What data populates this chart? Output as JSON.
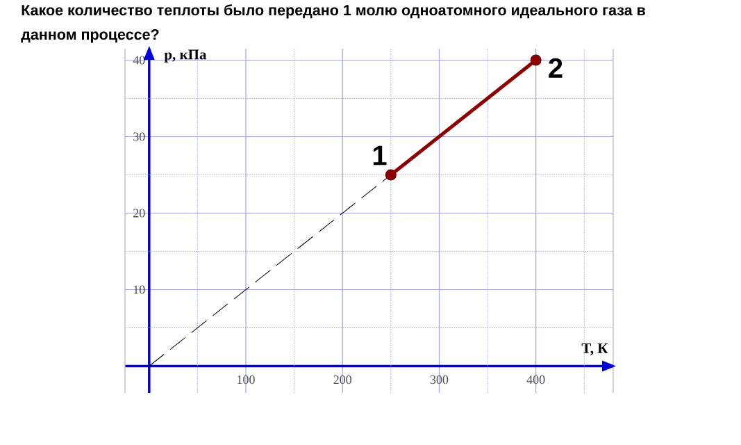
{
  "chart_data": {
    "type": "line",
    "title": "Какое количество теплоты было передано 1 молю одноатомного идеального газа в данном процессе?",
    "xlabel": "T, К",
    "ylabel": "p, кПа",
    "xlim": [
      -25,
      480
    ],
    "ylim": [
      -3.5,
      41.5
    ],
    "xticks": [
      {
        "value": 50,
        "label": null
      },
      100,
      {
        "value": 150,
        "label": null
      },
      200,
      {
        "value": 250,
        "label": null
      },
      300,
      {
        "value": 350,
        "label": null
      },
      400,
      {
        "value": 450,
        "label": null
      }
    ],
    "yticks": [
      {
        "value": 5,
        "label": null
      },
      10,
      {
        "value": 15,
        "label": null
      },
      20,
      {
        "value": 25,
        "label": null
      },
      30,
      {
        "value": 35,
        "label": null
      },
      40
    ],
    "grid": true,
    "series": [
      {
        "x": [
          0,
          250
        ],
        "values": [
          0,
          25
        ],
        "color": "#000000",
        "line_style": "dashed",
        "marker": "none"
      },
      {
        "x": [
          250,
          400
        ],
        "values": [
          25,
          40
        ],
        "color": "#8b0000",
        "line_style": "solid",
        "marker": "circle"
      }
    ],
    "annotations": [
      {
        "text": "1",
        "x": 250,
        "y": 25
      },
      {
        "text": "2",
        "x": 400,
        "y": 40
      }
    ]
  }
}
